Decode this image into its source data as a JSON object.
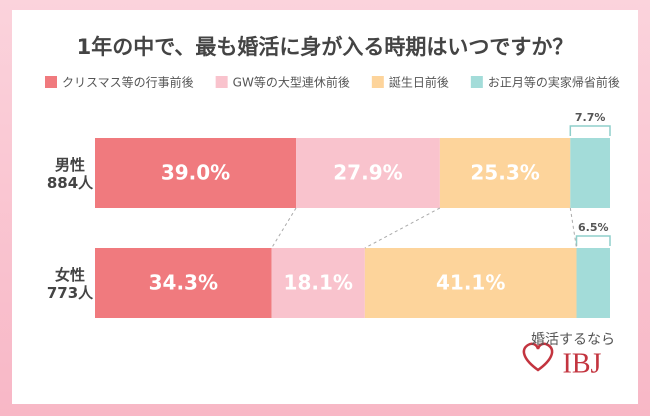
{
  "chart_data": {
    "type": "stacked-bar-horizontal",
    "title": "1年の中で、最も婚活に身が入る時期はいつですか？",
    "categories": [
      "男性\n884人",
      "女性\n773人"
    ],
    "series": [
      {
        "name": "クリスマス等の行事前後",
        "color": "#f07a7e",
        "values": [
          39.0,
          34.3
        ],
        "value_labels": [
          "39.0%",
          "34.3%"
        ]
      },
      {
        "name": "GW等の大型連休前後",
        "color": "#f9c3cd",
        "values": [
          27.9,
          18.1
        ],
        "value_labels": [
          "27.9%",
          "18.1%"
        ]
      },
      {
        "name": "誕生日前後",
        "color": "#fdd49b",
        "values": [
          25.3,
          41.1
        ],
        "value_labels": [
          "25.3%",
          "41.1%"
        ]
      },
      {
        "name": "お正月等の実家帰省前後",
        "color": "#a3dcd9",
        "values": [
          7.7,
          6.5
        ],
        "value_labels": [
          "7.7%",
          "6.5%"
        ]
      }
    ]
  },
  "logo": {
    "tagline": "婚活するなら",
    "brand": "IBJ"
  }
}
